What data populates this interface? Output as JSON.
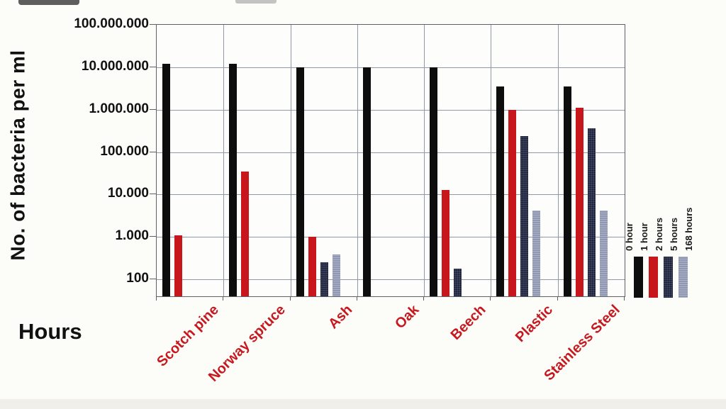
{
  "chart_data": {
    "type": "bar",
    "scale": "log",
    "ylabel": "No. of bacteria per ml",
    "xlabel": "Hours",
    "ylim": [
      100,
      100000000
    ],
    "yticks": [
      {
        "value": 100000000,
        "label": "100.000.000"
      },
      {
        "value": 10000000,
        "label": "10.000.000"
      },
      {
        "value": 1000000,
        "label": "1.000.000"
      },
      {
        "value": 100000,
        "label": "100.000"
      },
      {
        "value": 10000,
        "label": "10.000"
      },
      {
        "value": 1000,
        "label": "1.000"
      },
      {
        "value": 100,
        "label": "100"
      }
    ],
    "categories": [
      "Scotch pine",
      "Norway spruce",
      "Ash",
      "Oak",
      "Beech",
      "Plastic",
      "Stainless Steel"
    ],
    "series": [
      {
        "name": "0 hour",
        "color": "#0d0d0d",
        "pattern": "solid",
        "values": [
          12000000,
          12000000,
          10000000,
          10000000,
          10000000,
          3500000,
          3500000
        ]
      },
      {
        "name": "1 hour",
        "color": "#c8161d",
        "pattern": "solid",
        "values": [
          1100,
          35000,
          1000,
          null,
          13000,
          1000000,
          1100000
        ]
      },
      {
        "name": "2 hours",
        "color": "#3c4360",
        "pattern": "checker",
        "values": [
          null,
          null,
          250,
          null,
          180,
          240000,
          370000
        ]
      },
      {
        "name": "5 hours",
        "color": "#8f97b2",
        "pattern": "stripe",
        "values": [
          null,
          null,
          380,
          null,
          null,
          4200,
          4200
        ]
      },
      {
        "name": "168 hours",
        "color": "#ffffff",
        "pattern": "none",
        "values": [
          null,
          null,
          null,
          null,
          null,
          null,
          null
        ]
      }
    ],
    "grid": true,
    "legend_position": "right",
    "category_label_color": "#c6191f",
    "gridline_color": "#9097a8"
  }
}
